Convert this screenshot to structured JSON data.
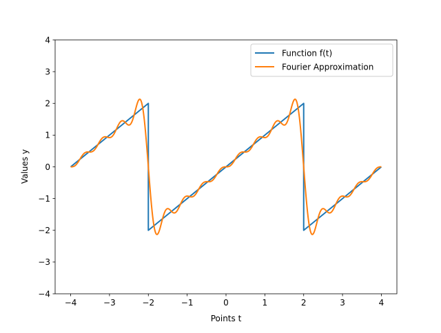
{
  "chart_data": {
    "type": "line",
    "title": "",
    "xlabel": "Points t",
    "ylabel": "Values y",
    "xlim": [
      -4.4,
      4.4
    ],
    "ylim": [
      -4,
      4
    ],
    "xticks": [
      -4,
      -3,
      -2,
      -1,
      0,
      1,
      2,
      3,
      4
    ],
    "yticks": [
      -4,
      -3,
      -2,
      -1,
      0,
      1,
      2,
      3,
      4
    ],
    "xtick_labels": [
      "−4",
      "−3",
      "−2",
      "−1",
      "0",
      "1",
      "2",
      "3",
      "4"
    ],
    "ytick_labels": [
      "−4",
      "−3",
      "−2",
      "−1",
      "0",
      "1",
      "2",
      "3",
      "4"
    ],
    "grid": false,
    "legend_position": "top-right",
    "series": [
      {
        "name": "Function f(t)",
        "color": "#1f77b4",
        "description": "sawtooth of period 4, f(t)=t on (-2,2), jumps from 2 to -2 at t=-2 and t=2",
        "x": [
          -4,
          -2,
          -2,
          2,
          2,
          4
        ],
        "y": [
          0,
          2,
          -2,
          2,
          -2,
          0
        ]
      },
      {
        "name": "Fourier Approximation",
        "color": "#ff7f0e",
        "description": "partial Fourier sum of the sawtooth with visible Gibbs overshoot near the jumps",
        "x_range": [
          -4,
          4
        ],
        "period": 4,
        "harmonics": 8
      }
    ]
  }
}
